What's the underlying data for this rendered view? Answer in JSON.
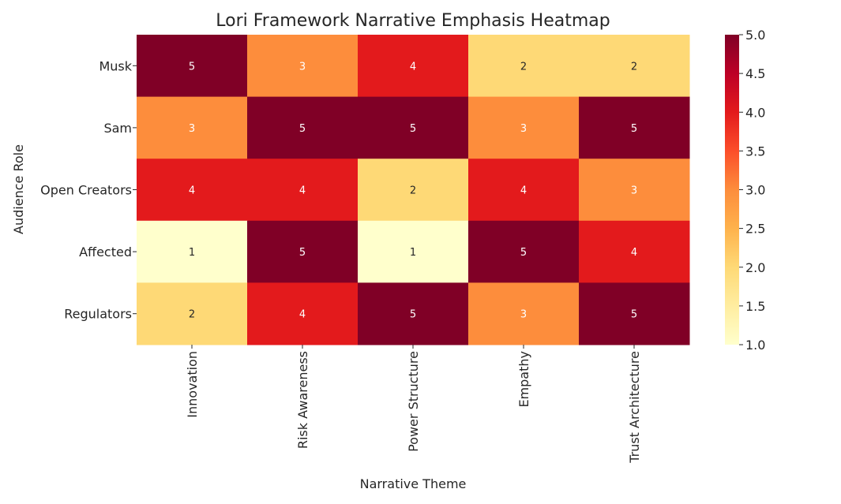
{
  "chart_data": {
    "type": "heatmap",
    "title": "Lori Framework Narrative Emphasis Heatmap",
    "xlabel": "Narrative Theme",
    "ylabel": "Audience Role",
    "x_categories": [
      "Innovation",
      "Risk Awareness",
      "Power Structure",
      "Empathy",
      "Trust Architecture"
    ],
    "y_categories": [
      "Musk",
      "Sam",
      "Open Creators",
      "Affected",
      "Regulators"
    ],
    "values": [
      [
        5,
        3,
        4,
        2,
        2
      ],
      [
        3,
        5,
        5,
        3,
        5
      ],
      [
        4,
        4,
        2,
        4,
        3
      ],
      [
        1,
        5,
        1,
        5,
        4
      ],
      [
        2,
        4,
        5,
        3,
        5
      ]
    ],
    "annotated": true,
    "colormap": "YlOrRd",
    "colors": {
      "1": "#ffffcc",
      "2": "#fed976",
      "3": "#fd8d3c",
      "4": "#e31a1c",
      "5": "#800026"
    },
    "value_range": [
      1,
      5
    ],
    "colorbar_ticks": [
      "1.0",
      "1.5",
      "2.0",
      "2.5",
      "3.0",
      "3.5",
      "4.0",
      "4.5",
      "5.0"
    ]
  }
}
